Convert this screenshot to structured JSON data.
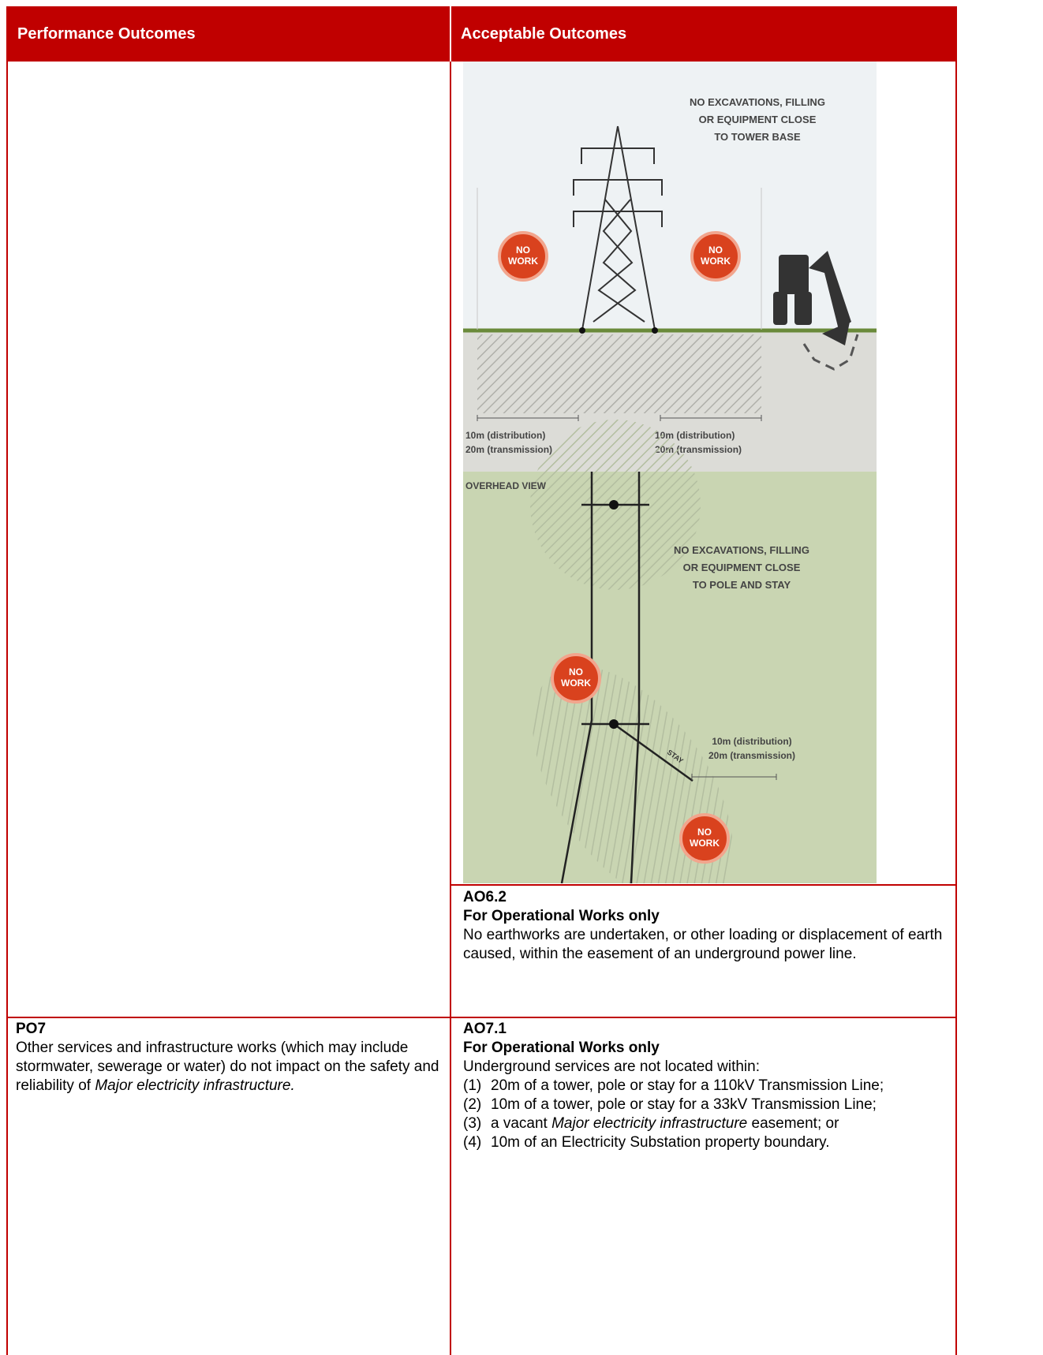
{
  "header": {
    "col1": "Performance Outcomes",
    "col2": "Acceptable Outcomes"
  },
  "figure": {
    "elevation": {
      "caption": [
        "NO EXCAVATIONS, FILLING",
        "OR EQUIPMENT CLOSE",
        "TO TOWER BASE"
      ],
      "badges": [
        [
          "NO",
          "WORK"
        ],
        [
          "NO",
          "WORK"
        ]
      ],
      "distances": [
        [
          "10m (distribution)",
          "20m (transmission)"
        ],
        [
          "10m (distribution)",
          "20m (transmission)"
        ]
      ]
    },
    "overhead": {
      "title": "OVERHEAD VIEW",
      "caption": [
        "NO EXCAVATIONS, FILLING",
        "OR EQUIPMENT CLOSE",
        "TO POLE AND STAY"
      ],
      "badges": [
        [
          "NO",
          "WORK"
        ],
        [
          "NO",
          "WORK"
        ]
      ],
      "distance": [
        "10m (distribution)",
        "20m (transmission)"
      ],
      "stay": "STAY"
    }
  },
  "rows": [
    {
      "right": {
        "code": "AO6.2",
        "scope": "For Operational Works only",
        "text": "No earthworks are undertaken, or other loading or displacement of earth caused, within the easement of an underground power line."
      }
    },
    {
      "left": {
        "code": "PO7",
        "text": [
          "Other services and infrastructure works (which may include stormwater, sewerage or water) do not impact on the safety and reliability of ",
          "Major electricity infrastructure."
        ]
      },
      "right": {
        "code": "AO7.1",
        "scope": "For Operational Works only",
        "intro": "Underground services are not located within:",
        "items": [
          {
            "num": "(1)",
            "text": [
              "20m of a tower, pole or stay for a 110kV Transmission Line;"
            ]
          },
          {
            "num": "(2)",
            "text": [
              "10m of a tower, pole or stay for a 33kV Transmission Line;"
            ]
          },
          {
            "num": "(3)",
            "text": [
              "a vacant ",
              "Major electricity infrastructure",
              " easement; or"
            ]
          },
          {
            "num": "(4)",
            "text": [
              "10m of an Electricity Substation property boundary."
            ]
          }
        ]
      }
    }
  ]
}
